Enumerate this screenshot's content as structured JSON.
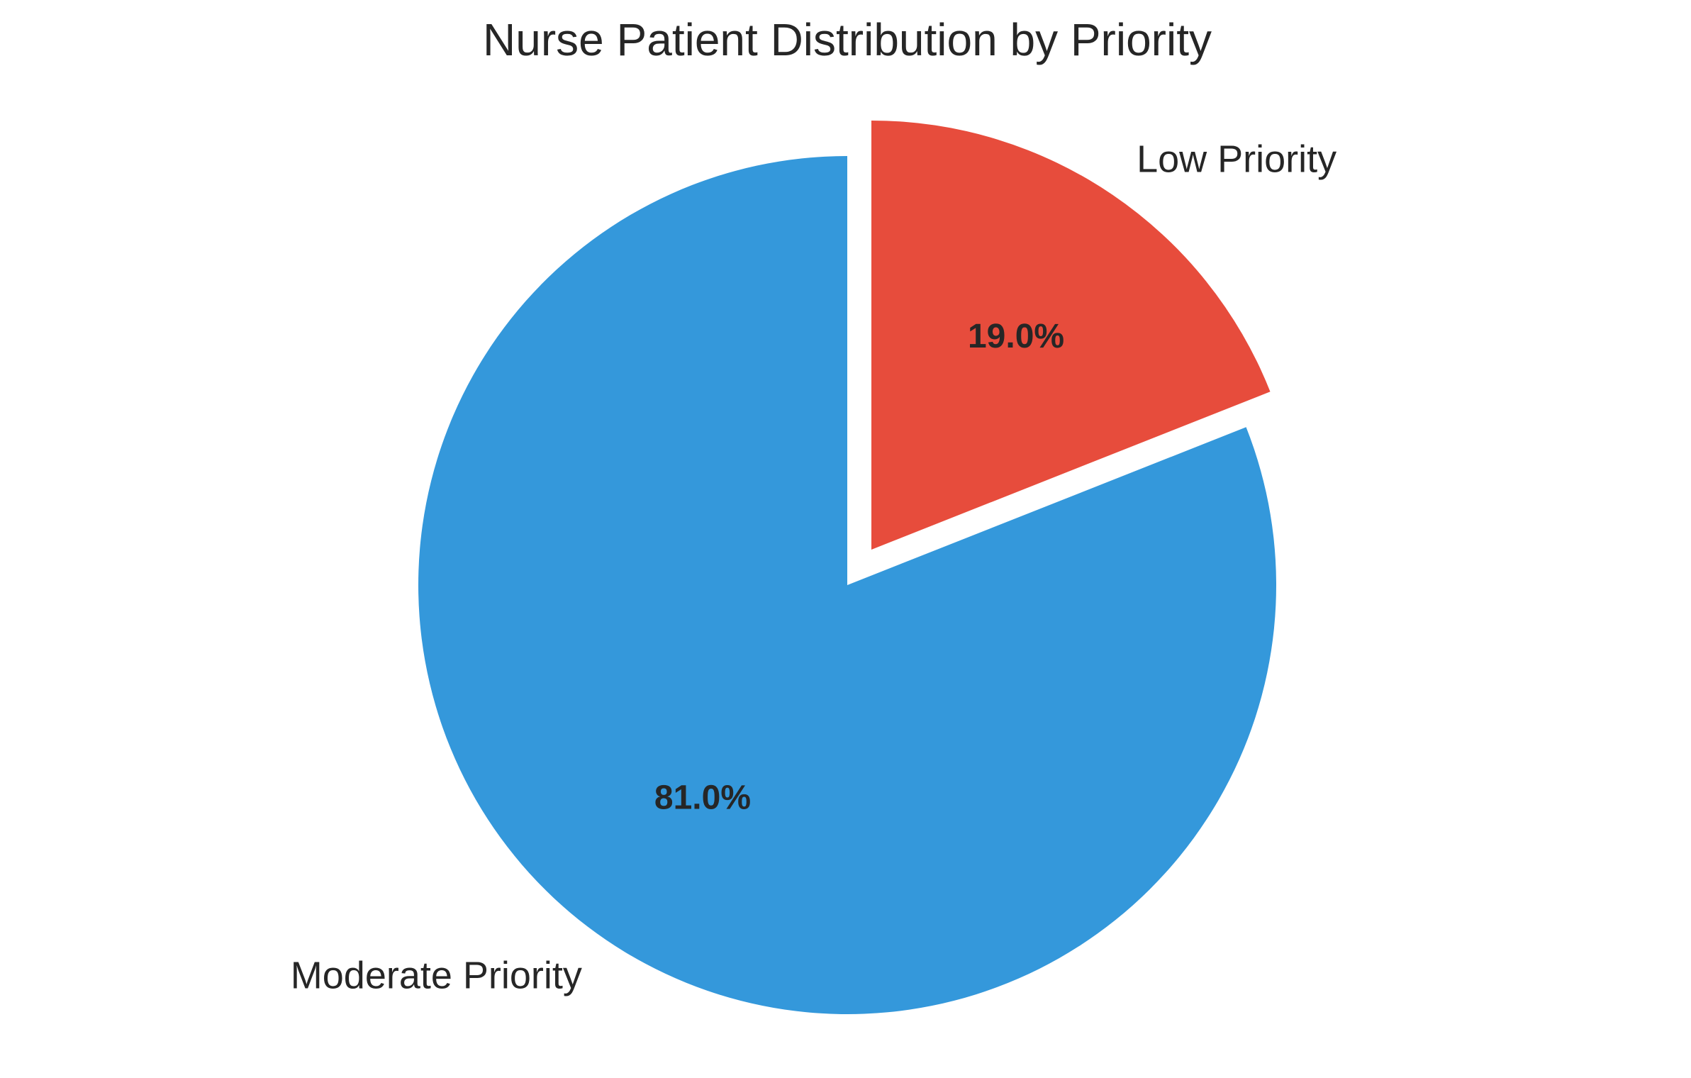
{
  "chart_data": {
    "type": "pie",
    "title": "Nurse Patient Distribution by Priority",
    "categories": [
      "Low Priority",
      "Moderate Priority"
    ],
    "values": [
      19.0,
      81.0
    ],
    "value_labels": [
      "19.0%",
      "81.0%"
    ],
    "colors": [
      "#e74c3c",
      "#3498db"
    ],
    "exploded": [
      true,
      false
    ],
    "start_angle_deg": 90,
    "direction": "clockwise",
    "legend": "none"
  }
}
